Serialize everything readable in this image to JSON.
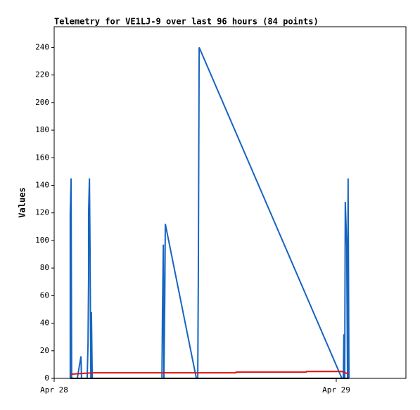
{
  "chart_data": {
    "type": "line",
    "title": "Telemetry for VE1LJ-9 over last 96 hours (84 points)",
    "y_label": "Values",
    "xlim": [
      0,
      1.247
    ],
    "xticks": [
      {
        "value": 0,
        "label": "Apr 28"
      },
      {
        "value": 1,
        "label": "Apr 29"
      }
    ],
    "ylim": [
      0,
      255
    ],
    "yticks": [
      0,
      20,
      40,
      60,
      80,
      100,
      120,
      140,
      160,
      180,
      200,
      220,
      240
    ],
    "grid": false,
    "series": [
      {
        "color": "#1565c0",
        "x": [
          0.057,
          0.057,
          0.06,
          0.062,
          0.082,
          0.095,
          0.097,
          0.117,
          0.12,
          0.122,
          0.122,
          0.125,
          0.127,
          0.13,
          0.132,
          0.135,
          0.382,
          0.384,
          0.387,
          0.389,
          0.392,
          0.394,
          0.504,
          0.509,
          0.511,
          0.514,
          1.02,
          1.025,
          1.027,
          1.03,
          1.032,
          1.037,
          1.04,
          1.042,
          1.045
        ],
        "values": [
          0,
          120,
          145,
          0,
          0,
          16,
          0,
          0,
          25,
          72,
          120,
          145,
          97,
          0,
          48,
          0,
          0,
          48,
          97,
          0,
          56,
          112,
          0,
          0,
          72,
          240,
          0,
          0,
          32,
          0,
          128,
          97,
          0,
          145,
          0
        ]
      },
      {
        "color": "#dd1111",
        "x": [
          0.057,
          0.135,
          0.643,
          0.645,
          0.893,
          0.895,
          1.02,
          1.045
        ],
        "values": [
          3,
          4,
          4,
          4.5,
          4.5,
          5,
          5,
          3
        ]
      },
      {
        "color": "#000000",
        "x": [
          0.057,
          1.045
        ],
        "values": [
          0,
          0
        ]
      }
    ]
  }
}
